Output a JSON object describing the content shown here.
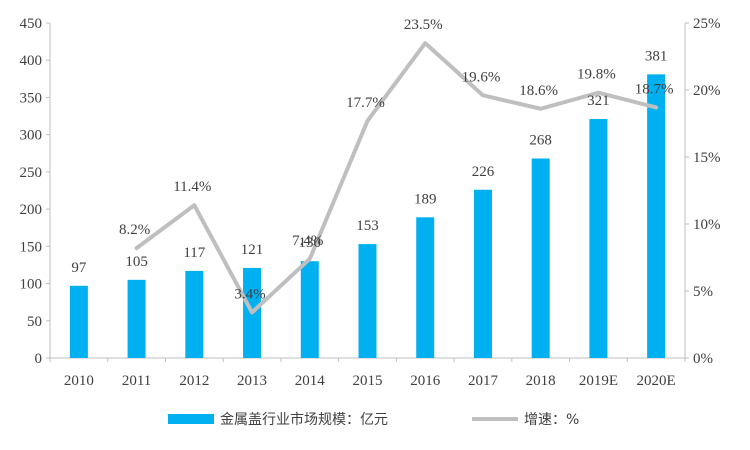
{
  "chart_data": {
    "type": "bar",
    "categories": [
      "2010",
      "2011",
      "2012",
      "2013",
      "2014",
      "2015",
      "2016",
      "2017",
      "2018",
      "2019E",
      "2020E"
    ],
    "series": [
      {
        "name": "金属盖行业市场规模：亿元",
        "type": "bar",
        "axis": "left",
        "color": "#00B0F0",
        "values": [
          97,
          105,
          117,
          121,
          130,
          153,
          189,
          226,
          268,
          321,
          381
        ],
        "labels": [
          "97",
          "105",
          "117",
          "121",
          "130",
          "153",
          "189",
          "226",
          "268",
          "321",
          "381"
        ]
      },
      {
        "name": "增速：%",
        "type": "line",
        "axis": "right",
        "color": "#BFBFBF",
        "values": [
          null,
          8.2,
          11.4,
          3.4,
          7.4,
          17.7,
          23.5,
          19.6,
          18.6,
          19.8,
          18.7
        ],
        "labels": [
          "",
          "8.2%",
          "11.4%",
          "3.4%",
          "7.4%",
          "17.7%",
          "23.5%",
          "19.6%",
          "18.6%",
          "19.8%",
          "18.7%"
        ]
      }
    ],
    "y_left": {
      "lim": [
        0,
        450
      ],
      "ticks": [
        "0",
        "50",
        "100",
        "150",
        "200",
        "250",
        "300",
        "350",
        "400",
        "450"
      ]
    },
    "y_right": {
      "lim": [
        0,
        25
      ],
      "ticks": [
        "0%",
        "5%",
        "10%",
        "15%",
        "20%",
        "25%"
      ]
    },
    "grid": false,
    "legend_position": "bottom"
  }
}
